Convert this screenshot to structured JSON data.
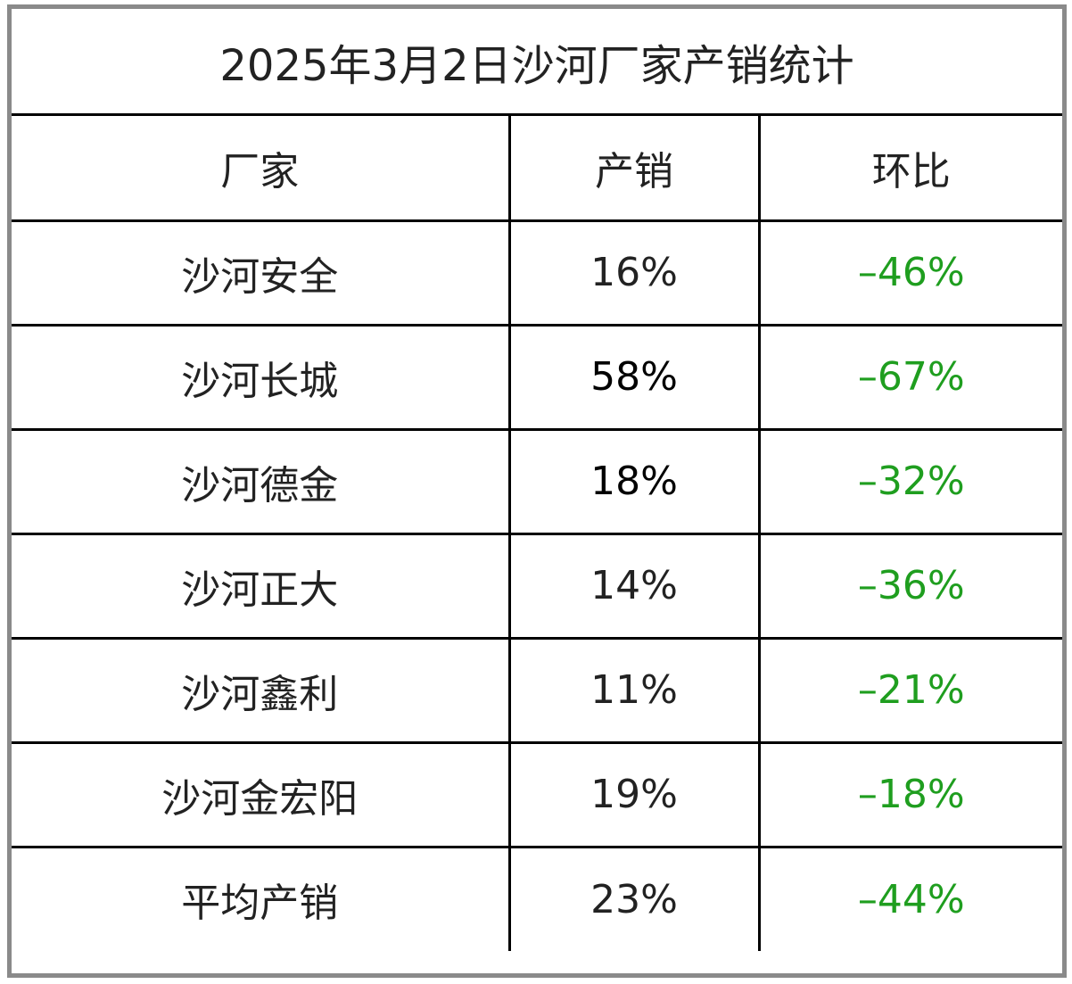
{
  "title": "2025年3月2日沙河厂家产销统计",
  "headers": {
    "manufacturer": "厂家",
    "production_sales": "产销",
    "mom_change": "环比"
  },
  "rows": [
    {
      "manufacturer": "沙河安全",
      "production_sales": "16%",
      "mom_change": "–46%"
    },
    {
      "manufacturer": "沙河长城",
      "production_sales": "58%",
      "mom_change": "–67%"
    },
    {
      "manufacturer": "沙河德金",
      "production_sales": "18%",
      "mom_change": "–32%"
    },
    {
      "manufacturer": "沙河正大",
      "production_sales": "14%",
      "mom_change": "–36%"
    },
    {
      "manufacturer": "沙河鑫利",
      "production_sales": "11%",
      "mom_change": "–21%"
    },
    {
      "manufacturer": "沙河金宏阳",
      "production_sales": "19%",
      "mom_change": "–18%"
    },
    {
      "manufacturer": "平均产销",
      "production_sales": "23%",
      "mom_change": "–44%"
    }
  ],
  "colors": {
    "change_text": "#1f9e1f",
    "border": "#000000",
    "frame": "#8a8a8a"
  }
}
